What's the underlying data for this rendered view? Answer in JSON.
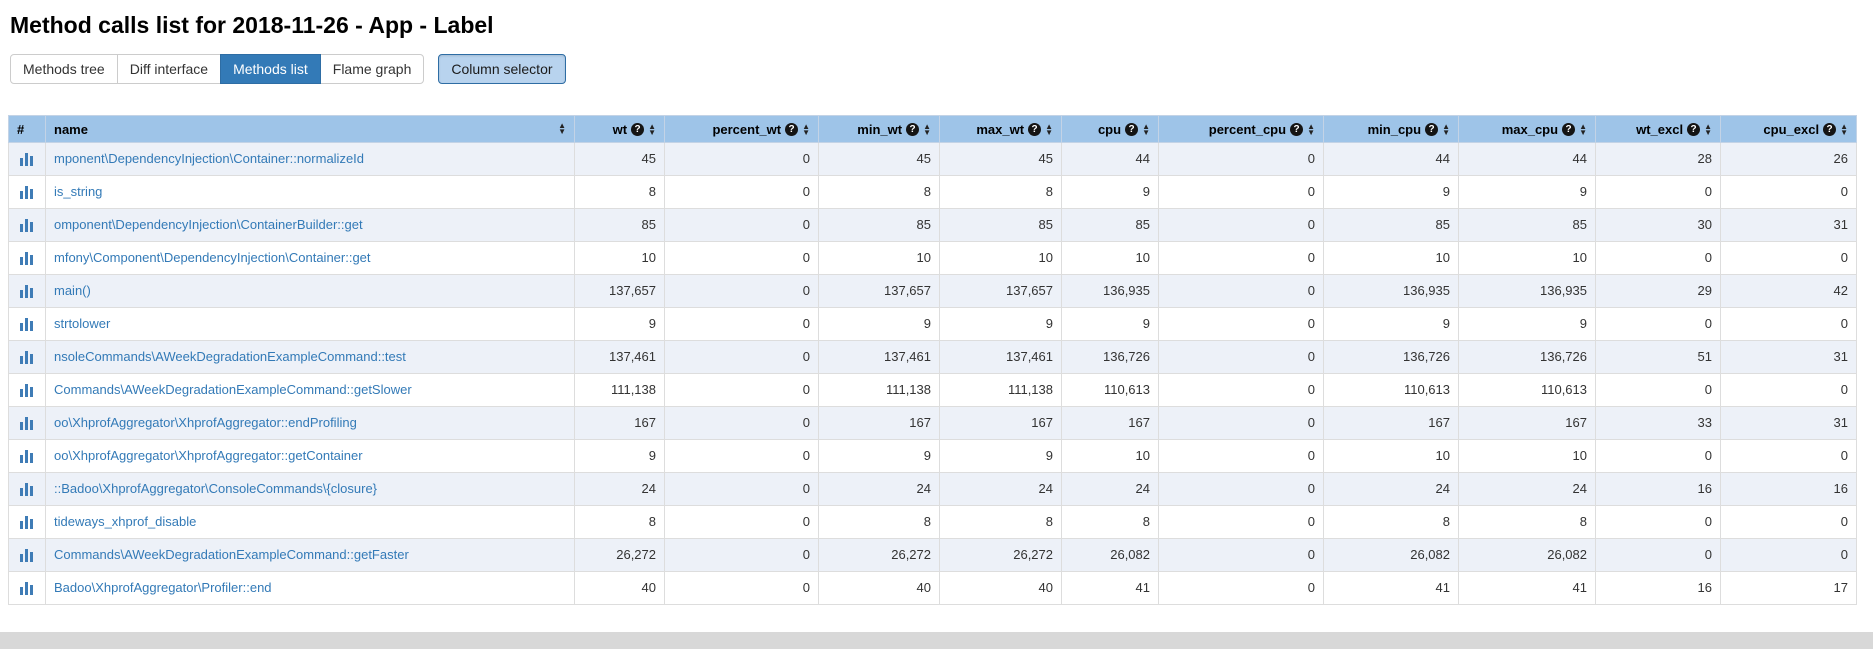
{
  "page": {
    "title": "Method calls list for 2018-11-26 - App - Label"
  },
  "toolbar": {
    "tabs": [
      {
        "label": "Methods tree",
        "active": false
      },
      {
        "label": "Diff interface",
        "active": false
      },
      {
        "label": "Methods list",
        "active": true
      },
      {
        "label": "Flame graph",
        "active": false
      }
    ],
    "column_selector_label": "Column selector"
  },
  "icons": {
    "help_glyph": "?",
    "sort_asc_glyph": "▲",
    "sort_desc_glyph": "▼",
    "row_icon": "bar-chart-icon"
  },
  "colors": {
    "header_bg": "#9ec4e8",
    "stripe_bg": "#edf1f8",
    "active_tab_bg": "#337ab7",
    "link_color": "#337ab7",
    "column_selector_bg": "#b8d3ee",
    "bar_icon_blue": "#3f7cb6",
    "bottom_bar_gray": "#d8d8d8"
  },
  "table": {
    "columns": [
      {
        "key": "num",
        "label": "#",
        "align": "left",
        "sort": false,
        "help": false
      },
      {
        "key": "name",
        "label": "name",
        "align": "left",
        "sort": true,
        "help": false
      },
      {
        "key": "wt",
        "label": "wt",
        "align": "right",
        "sort": true,
        "help": true
      },
      {
        "key": "percent_wt",
        "label": "percent_wt",
        "align": "right",
        "sort": true,
        "help": true
      },
      {
        "key": "min_wt",
        "label": "min_wt",
        "align": "right",
        "sort": true,
        "help": true
      },
      {
        "key": "max_wt",
        "label": "max_wt",
        "align": "right",
        "sort": true,
        "help": true
      },
      {
        "key": "cpu",
        "label": "cpu",
        "align": "right",
        "sort": true,
        "help": true
      },
      {
        "key": "percent_cpu",
        "label": "percent_cpu",
        "align": "right",
        "sort": true,
        "help": true
      },
      {
        "key": "min_cpu",
        "label": "min_cpu",
        "align": "right",
        "sort": true,
        "help": true
      },
      {
        "key": "max_cpu",
        "label": "max_cpu",
        "align": "right",
        "sort": true,
        "help": true
      },
      {
        "key": "wt_excl",
        "label": "wt_excl",
        "align": "right",
        "sort": true,
        "help": true
      },
      {
        "key": "cpu_excl",
        "label": "cpu_excl",
        "align": "right",
        "sort": true,
        "help": true
      }
    ],
    "rows": [
      {
        "name": "mponent\\DependencyInjection\\Container::normalizeId",
        "values": [
          "45",
          "0",
          "45",
          "45",
          "44",
          "0",
          "44",
          "44",
          "28",
          "26"
        ]
      },
      {
        "name": "is_string",
        "values": [
          "8",
          "0",
          "8",
          "8",
          "9",
          "0",
          "9",
          "9",
          "0",
          "0"
        ]
      },
      {
        "name": "omponent\\DependencyInjection\\ContainerBuilder::get",
        "values": [
          "85",
          "0",
          "85",
          "85",
          "85",
          "0",
          "85",
          "85",
          "30",
          "31"
        ]
      },
      {
        "name": "mfony\\Component\\DependencyInjection\\Container::get",
        "values": [
          "10",
          "0",
          "10",
          "10",
          "10",
          "0",
          "10",
          "10",
          "0",
          "0"
        ]
      },
      {
        "name": "main()",
        "values": [
          "137,657",
          "0",
          "137,657",
          "137,657",
          "136,935",
          "0",
          "136,935",
          "136,935",
          "29",
          "42"
        ]
      },
      {
        "name": "strtolower",
        "values": [
          "9",
          "0",
          "9",
          "9",
          "9",
          "0",
          "9",
          "9",
          "0",
          "0"
        ]
      },
      {
        "name": "nsoleCommands\\AWeekDegradationExampleCommand::test",
        "values": [
          "137,461",
          "0",
          "137,461",
          "137,461",
          "136,726",
          "0",
          "136,726",
          "136,726",
          "51",
          "31"
        ]
      },
      {
        "name": "Commands\\AWeekDegradationExampleCommand::getSlower",
        "values": [
          "111,138",
          "0",
          "111,138",
          "111,138",
          "110,613",
          "0",
          "110,613",
          "110,613",
          "0",
          "0"
        ]
      },
      {
        "name": "oo\\XhprofAggregator\\XhprofAggregator::endProfiling",
        "values": [
          "167",
          "0",
          "167",
          "167",
          "167",
          "0",
          "167",
          "167",
          "33",
          "31"
        ]
      },
      {
        "name": "oo\\XhprofAggregator\\XhprofAggregator::getContainer",
        "values": [
          "9",
          "0",
          "9",
          "9",
          "10",
          "0",
          "10",
          "10",
          "0",
          "0"
        ]
      },
      {
        "name": "::Badoo\\XhprofAggregator\\ConsoleCommands\\{closure}",
        "values": [
          "24",
          "0",
          "24",
          "24",
          "24",
          "0",
          "24",
          "24",
          "16",
          "16"
        ]
      },
      {
        "name": "tideways_xhprof_disable",
        "values": [
          "8",
          "0",
          "8",
          "8",
          "8",
          "0",
          "8",
          "8",
          "0",
          "0"
        ]
      },
      {
        "name": "Commands\\AWeekDegradationExampleCommand::getFaster",
        "values": [
          "26,272",
          "0",
          "26,272",
          "26,272",
          "26,082",
          "0",
          "26,082",
          "26,082",
          "0",
          "0"
        ]
      },
      {
        "name": "Badoo\\XhprofAggregator\\Profiler::end",
        "values": [
          "40",
          "0",
          "40",
          "40",
          "41",
          "0",
          "41",
          "41",
          "16",
          "17"
        ]
      }
    ]
  }
}
